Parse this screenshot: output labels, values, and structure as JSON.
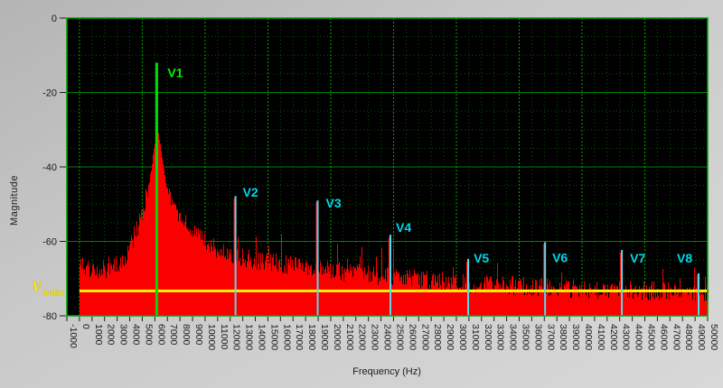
{
  "chart_data": {
    "type": "area",
    "title": "",
    "xlabel": "Frequency (Hz)",
    "ylabel": "Magnitude",
    "x_range": [
      -1000,
      50000
    ],
    "x_tick_step": 1000,
    "x_major_every_hz": 5000,
    "y_range": [
      -80,
      0
    ],
    "y_ticks": [
      0,
      -20,
      -40,
      -60,
      -80
    ],
    "y_minor_step": 5,
    "grid": "on",
    "plot_bg": "#000000",
    "grid_major_color": "#008200",
    "grid_major_vert_color": "#00a800",
    "grid_minor_color": "#005a00",
    "border_color": "#00a400",
    "tick_color": "#1c1c1c",
    "spectrum": {
      "color": "#fa0000",
      "start_hz": 0,
      "end_hz": 50000,
      "envelope_db": [
        [
          0,
          -64.5
        ],
        [
          300,
          -66.5
        ],
        [
          1000,
          -67.5
        ],
        [
          2500,
          -67.5
        ],
        [
          3500,
          -65
        ],
        [
          4200,
          -60
        ],
        [
          4800,
          -54
        ],
        [
          5300,
          -47.5
        ],
        [
          5700,
          -41
        ],
        [
          5950,
          -34
        ],
        [
          6150,
          -28.5
        ],
        [
          6350,
          -33
        ],
        [
          6600,
          -39
        ],
        [
          6900,
          -45
        ],
        [
          7400,
          -50
        ],
        [
          8200,
          -54.5
        ],
        [
          9200,
          -58.5
        ],
        [
          10500,
          -61.5
        ],
        [
          12000,
          -63.5
        ],
        [
          14000,
          -65
        ],
        [
          16000,
          -66
        ],
        [
          18000,
          -67
        ],
        [
          20500,
          -68
        ],
        [
          23000,
          -69
        ],
        [
          26000,
          -70
        ],
        [
          29000,
          -70.8
        ],
        [
          32000,
          -71.5
        ],
        [
          35000,
          -72
        ],
        [
          38000,
          -72.5
        ],
        [
          42000,
          -73
        ],
        [
          46000,
          -73.3
        ],
        [
          50000,
          -73.5
        ]
      ],
      "jitter_db": 2.6,
      "harmonic_spikes": [
        [
          6150,
          -13
        ],
        [
          12350,
          -48.5
        ],
        [
          18890,
          -49.5
        ],
        [
          24680,
          -59
        ],
        [
          30870,
          -65.5
        ],
        [
          36990,
          -60.6
        ],
        [
          43100,
          -63
        ],
        [
          49210,
          -69
        ]
      ]
    },
    "noise_line": {
      "level_db": -73.3,
      "color": "#fff200",
      "label_main": "V",
      "label_sub": "noise"
    },
    "markers": [
      {
        "label": "V1",
        "freq_hz": 6150,
        "top_db": -12,
        "line_color": "#00dc00",
        "label_color": "#00f000",
        "line_width": 3,
        "label_offset": [
          12,
          16
        ]
      },
      {
        "label": "V2",
        "freq_hz": 12350,
        "top_db": -47.8,
        "line_color": "#58d8ec",
        "label_color": "#00d8ec",
        "line_width": 2,
        "label_offset": [
          9,
          1
        ]
      },
      {
        "label": "V3",
        "freq_hz": 18890,
        "top_db": -49,
        "line_color": "#58d8ec",
        "label_color": "#00d8ec",
        "line_width": 2,
        "label_offset": [
          10,
          8
        ]
      },
      {
        "label": "V4",
        "freq_hz": 24680,
        "top_db": -58.2,
        "line_color": "#58d8ec",
        "label_color": "#00d8ec",
        "line_width": 2,
        "label_offset": [
          7,
          -3
        ]
      },
      {
        "label": "V5",
        "freq_hz": 30870,
        "top_db": -64.7,
        "line_color": "#58d8ec",
        "label_color": "#00d8ec",
        "line_width": 2,
        "label_offset": [
          7,
          4
        ]
      },
      {
        "label": "V6",
        "freq_hz": 36990,
        "top_db": -60.2,
        "line_color": "#58d8ec",
        "label_color": "#00d8ec",
        "line_width": 2,
        "label_offset": [
          9,
          22
        ]
      },
      {
        "label": "V7",
        "freq_hz": 43100,
        "top_db": -62.3,
        "line_color": "#58d8ec",
        "label_color": "#00d8ec",
        "line_width": 2,
        "label_offset": [
          10,
          14
        ]
      },
      {
        "label": "V8",
        "freq_hz": 49210,
        "top_db": -68.6,
        "line_color": "#58d8ec",
        "label_color": "#00d8ec",
        "line_width": 2,
        "label_offset": [
          -23,
          -12
        ]
      }
    ]
  }
}
